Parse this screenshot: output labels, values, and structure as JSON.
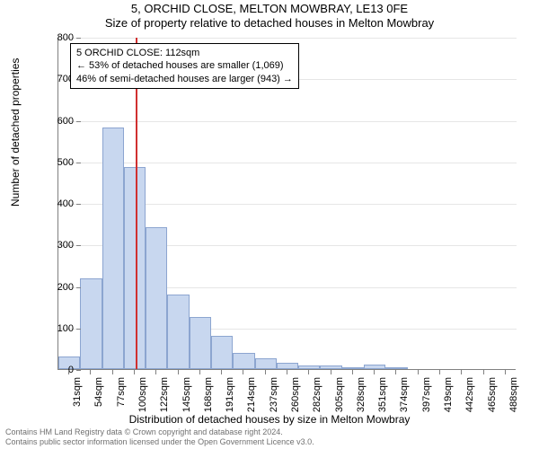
{
  "header": {
    "title": "5, ORCHID CLOSE, MELTON MOWBRAY, LE13 0FE",
    "subtitle": "Size of property relative to detached houses in Melton Mowbray"
  },
  "chart": {
    "type": "histogram",
    "background_color": "#ffffff",
    "grid_color": "#e6e6e6",
    "axis_color": "#808080",
    "bar_fill": "#c8d7ef",
    "bar_border": "#8ca5d0",
    "marker_color": "#d03030",
    "ylabel": "Number of detached properties",
    "xlabel": "Distribution of detached houses by size in Melton Mowbray",
    "ylim": [
      0,
      800
    ],
    "ytick_step": 100,
    "yticks": [
      0,
      100,
      200,
      300,
      400,
      500,
      600,
      700,
      800
    ],
    "xtick_labels": [
      "31sqm",
      "54sqm",
      "77sqm",
      "100sqm",
      "122sqm",
      "145sqm",
      "168sqm",
      "191sqm",
      "214sqm",
      "237sqm",
      "260sqm",
      "282sqm",
      "305sqm",
      "328sqm",
      "351sqm",
      "374sqm",
      "397sqm",
      "419sqm",
      "442sqm",
      "465sqm",
      "488sqm"
    ],
    "bars": [
      {
        "x_index": 0,
        "value": 30
      },
      {
        "x_index": 1,
        "value": 218
      },
      {
        "x_index": 2,
        "value": 582
      },
      {
        "x_index": 3,
        "value": 487
      },
      {
        "x_index": 4,
        "value": 342
      },
      {
        "x_index": 5,
        "value": 180
      },
      {
        "x_index": 6,
        "value": 125
      },
      {
        "x_index": 7,
        "value": 80
      },
      {
        "x_index": 8,
        "value": 40
      },
      {
        "x_index": 9,
        "value": 25
      },
      {
        "x_index": 10,
        "value": 15
      },
      {
        "x_index": 11,
        "value": 8
      },
      {
        "x_index": 12,
        "value": 8
      },
      {
        "x_index": 13,
        "value": 5
      },
      {
        "x_index": 14,
        "value": 10
      },
      {
        "x_index": 15,
        "value": 3
      }
    ],
    "bar_width_ratio": 1.0,
    "marker_position": 3.55,
    "label_fontsize": 12,
    "tick_fontsize": 11
  },
  "annotation": {
    "line1": "5 ORCHID CLOSE: 112sqm",
    "line2": "← 53% of detached houses are smaller (1,069)",
    "line3": "46% of semi-detached houses are larger (943) →"
  },
  "footer": {
    "line1": "Contains HM Land Registry data © Crown copyright and database right 2024.",
    "line2": "Contains public sector information licensed under the Open Government Licence v3.0."
  }
}
